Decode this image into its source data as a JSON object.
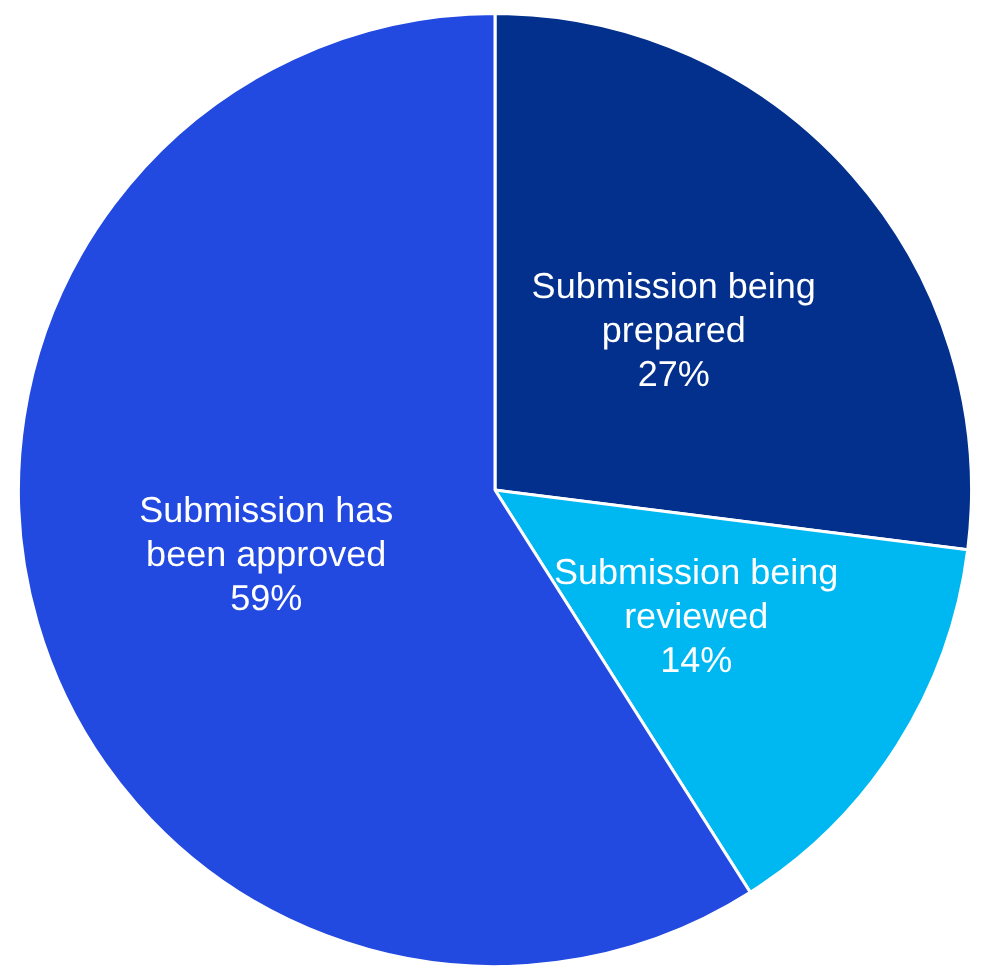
{
  "chart_data": {
    "type": "pie",
    "categories": [
      "Submission being prepared",
      "Submission being reviewed",
      "Submission has been approved"
    ],
    "values": [
      27,
      14,
      59
    ],
    "colors": [
      "#03308c",
      "#00b8f1",
      "#2249e0"
    ],
    "value_labels": [
      "27%",
      "14%",
      "59%"
    ],
    "legend": false
  }
}
